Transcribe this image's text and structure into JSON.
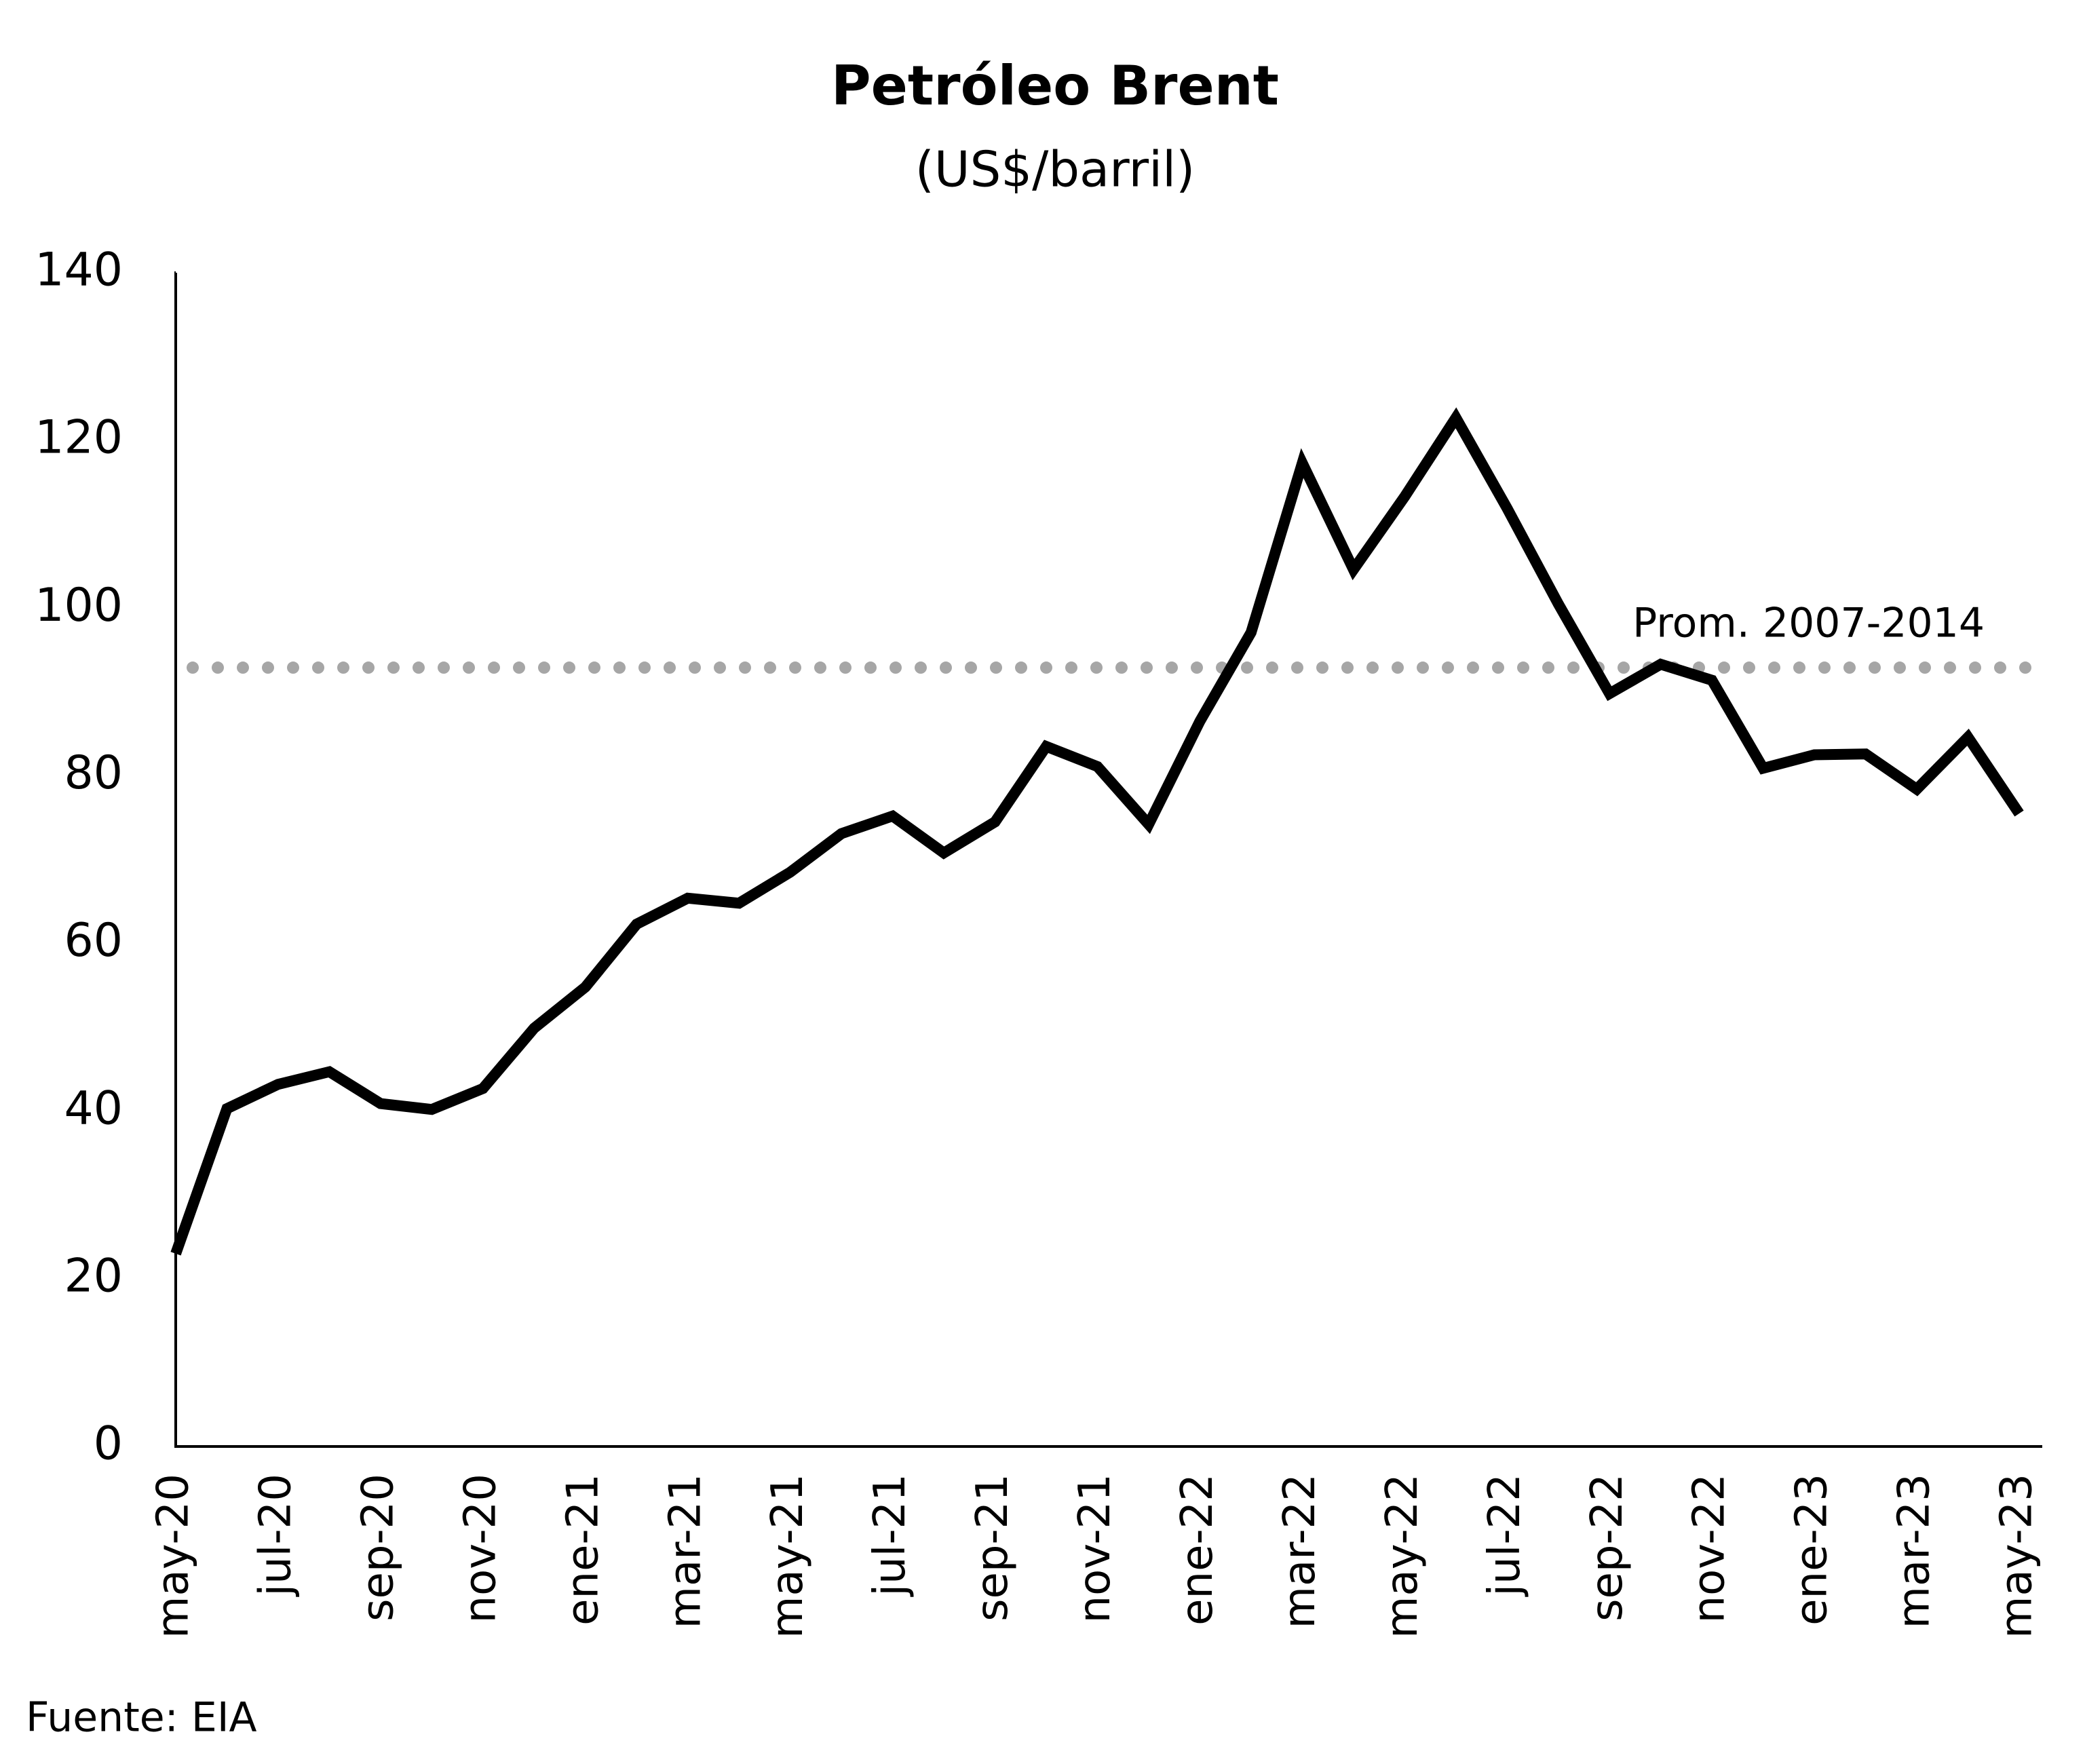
{
  "chart_data": {
    "type": "line",
    "title": "Petróleo Brent",
    "subtitle": "(US$/barril)",
    "source": "Fuente: EIA",
    "categories": [
      "may-20",
      null,
      "jul-20",
      null,
      "sep-20",
      null,
      "nov-20",
      null,
      "ene-21",
      null,
      "mar-21",
      null,
      "may-21",
      null,
      "jul-21",
      null,
      "sep-21",
      null,
      "nov-21",
      null,
      "ene-22",
      null,
      "mar-22",
      null,
      "may-22",
      null,
      "jul-22",
      null,
      "sep-22",
      null,
      "nov-22",
      null,
      "ene-23",
      null,
      "mar-23",
      null,
      "may-23"
    ],
    "series": [
      {
        "name": "Petróleo Brent",
        "color": "#000000",
        "values": [
          23,
          40.3,
          43.2,
          44.7,
          40.9,
          40.2,
          42.7,
          49.9,
          54.8,
          62.3,
          65.4,
          64.8,
          68.5,
          73.1,
          75.2,
          70.8,
          74.5,
          83.5,
          81.1,
          74.2,
          86.5,
          97.1,
          117.3,
          104.6,
          113.3,
          122.7,
          111.9,
          100.5,
          89.8,
          93.3,
          91.4,
          80.9,
          82.5,
          82.6,
          78.4,
          84.6,
          75.5
        ]
      }
    ],
    "reference": {
      "value": 92.9,
      "label": "Prom. 2007-2014",
      "color": "#a6a6a6"
    },
    "ylim": [
      0,
      140
    ],
    "yticks": [
      0,
      20,
      40,
      60,
      80,
      100,
      120,
      140
    ],
    "grid": false
  }
}
